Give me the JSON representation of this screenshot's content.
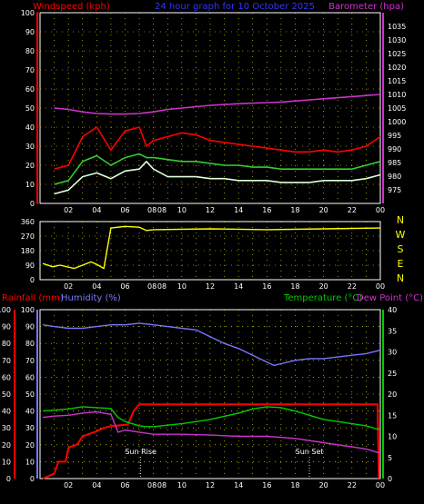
{
  "header": {
    "left_label": "Windspeed (kph)",
    "center_title": "24 hour graph for 10 October 2025",
    "right_label": "Barometer (hpa)"
  },
  "colors": {
    "background": "#000000",
    "panel_border": "#ffffff",
    "grid": "#ffff00",
    "wind_gust": "#ff0000",
    "wind_avg": "#33cc33",
    "wind_speed": "#ddffdd",
    "barometer": "#cc33cc",
    "direction": "#ffff00",
    "rainfall": "#ff0000",
    "humidity": "#7777ff",
    "temperature": "#00cc00",
    "dew_point": "#cc33cc",
    "header_left": "#ff0000",
    "header_center": "#3333ff",
    "header_right": "#cc33cc"
  },
  "x_tick_labels": [
    "02",
    "04",
    "06",
    "08",
    "08",
    "10",
    "12",
    "14",
    "16",
    "18",
    "20",
    "22",
    "00"
  ],
  "chart_data": [
    {
      "type": "line",
      "panel": "wind-barometer",
      "xlabel": "",
      "ylabel_left": "Windspeed (kph)",
      "ylabel_right": "Barometer (hpa)",
      "ylim_left": [
        0,
        100
      ],
      "ylim_right": [
        970,
        1040
      ],
      "yticks_left": [
        0,
        10,
        20,
        30,
        40,
        50,
        60,
        70,
        80,
        90,
        100
      ],
      "yticks_right": [
        975,
        980,
        985,
        990,
        995,
        1000,
        1005,
        1010,
        1015,
        1020,
        1025,
        1030,
        1035
      ],
      "grid": true,
      "series": [
        {
          "name": "Barometer (hpa)",
          "axis": "right",
          "color_key": "barometer",
          "x": [
            1,
            2,
            3,
            4,
            5,
            6,
            7,
            7.5,
            8,
            9,
            10,
            11,
            12,
            13,
            14,
            15,
            16,
            17,
            18,
            19,
            20,
            21,
            22,
            23,
            24
          ],
          "y": [
            1005.0,
            1004.5,
            1003.6,
            1003.0,
            1002.8,
            1002.8,
            1003.0,
            1003.3,
            1003.6,
            1004.5,
            1005.0,
            1005.5,
            1006.0,
            1006.3,
            1006.6,
            1006.8,
            1007.0,
            1007.2,
            1007.6,
            1008.0,
            1008.4,
            1008.8,
            1009.2,
            1009.6,
            1010.0
          ]
        },
        {
          "axis": "left",
          "color_key": "wind_gust",
          "x": [
            1,
            2,
            3,
            4,
            5,
            6,
            7,
            7.5,
            8,
            9,
            10,
            11,
            12,
            13,
            14,
            15,
            16,
            17,
            18,
            19,
            20,
            21,
            22,
            23,
            24
          ],
          "y": [
            18,
            20,
            35,
            40,
            28,
            38,
            40,
            30,
            33,
            35,
            37,
            36,
            33,
            32,
            31,
            30,
            29,
            28,
            27,
            27,
            28,
            27,
            28,
            30,
            35
          ]
        },
        {
          "axis": "left",
          "color_key": "wind_avg",
          "x": [
            1,
            2,
            3,
            4,
            5,
            6,
            7,
            7.5,
            8,
            9,
            10,
            11,
            12,
            13,
            14,
            15,
            16,
            17,
            18,
            19,
            20,
            21,
            22,
            23,
            24
          ],
          "y": [
            10,
            12,
            22,
            25,
            20,
            24,
            26,
            24,
            24,
            23,
            22,
            22,
            21,
            20,
            20,
            19,
            19,
            18,
            18,
            18,
            18,
            18,
            18,
            20,
            22
          ]
        },
        {
          "axis": "left",
          "color_key": "wind_speed",
          "x": [
            1,
            2,
            3,
            4,
            5,
            6,
            7,
            7.5,
            8,
            9,
            10,
            11,
            12,
            13,
            14,
            15,
            16,
            17,
            18,
            19,
            20,
            21,
            22,
            23,
            24
          ],
          "y": [
            5,
            7,
            14,
            16,
            13,
            17,
            18,
            22,
            18,
            14,
            14,
            14,
            13,
            13,
            12,
            12,
            12,
            11,
            11,
            11,
            12,
            12,
            12,
            13,
            15
          ]
        }
      ]
    },
    {
      "type": "line",
      "panel": "wind-direction",
      "xlabel": "",
      "ylabel": "",
      "ylim": [
        0,
        360
      ],
      "yticks": [
        0,
        90,
        180,
        270,
        360
      ],
      "right_labels": [
        "N",
        "W",
        "S",
        "E",
        "N"
      ],
      "grid": true,
      "series": [
        {
          "color_key": "direction",
          "x": [
            0.2,
            0.9,
            1.4,
            2.4,
            3.6,
            4.0,
            4.5,
            5.0,
            6.0,
            7.0,
            7.5,
            8.0,
            12.0,
            16.0,
            20.0,
            24.0
          ],
          "y": [
            100,
            80,
            90,
            70,
            110,
            95,
            70,
            320,
            330,
            325,
            305,
            310,
            315,
            310,
            315,
            320
          ]
        }
      ]
    },
    {
      "type": "line",
      "panel": "rain-humidity-temperature",
      "xlabel": "",
      "ylabel_left_1": "Rainfall (mm)",
      "ylabel_left_2": "Humidity (%)",
      "ylabel_right_1": "Temperature (°C)",
      "ylabel_right_2": "Dew Point (°C)",
      "ylim_left": [
        0,
        100
      ],
      "ylim_right": [
        0,
        40
      ],
      "yticks_left": [
        0,
        10,
        20,
        30,
        40,
        50,
        60,
        70,
        80,
        90,
        100
      ],
      "yticks_right": [
        0,
        5,
        10,
        15,
        20,
        25,
        30,
        35,
        40
      ],
      "grid": true,
      "annotations": [
        {
          "label": "Sun Rise",
          "x": 7.1
        },
        {
          "label": "Sun Set",
          "x": 19.0
        }
      ],
      "series": [
        {
          "name": "Rainfall (mm)",
          "axis": "left",
          "color_key": "rainfall",
          "x": [
            0.2,
            1.0,
            1.3,
            1.8,
            2.0,
            2.2,
            2.6,
            3.0,
            4.0,
            4.5,
            5.0,
            6.2,
            6.6,
            7.0,
            23.8,
            23.9
          ],
          "y": [
            0,
            3,
            10,
            10,
            18,
            19,
            20,
            25,
            28,
            30,
            31,
            32,
            40,
            44,
            44,
            0
          ]
        },
        {
          "name": "Humidity (%)",
          "axis": "left",
          "color_key": "humidity",
          "x": [
            0.2,
            1,
            2,
            3,
            4,
            5,
            6,
            7,
            8,
            9,
            10,
            11,
            12,
            13,
            14,
            15,
            16,
            16.5,
            17,
            18,
            19,
            20,
            21,
            22,
            23,
            24
          ],
          "y": [
            91,
            90,
            89,
            89,
            90,
            91,
            91,
            92,
            91,
            90,
            89,
            88,
            84,
            80,
            77,
            73,
            69,
            67,
            68,
            70,
            71,
            71,
            72,
            73,
            74,
            76
          ]
        },
        {
          "name": "Temperature (°C)",
          "axis": "right",
          "color_key": "temperature",
          "x": [
            0.2,
            1,
            2,
            3,
            4,
            5,
            5.5,
            6,
            6.5,
            7,
            7.5,
            8,
            10,
            12,
            14,
            15,
            16,
            17,
            18,
            19,
            20,
            21,
            22,
            23,
            24
          ],
          "y": [
            16.0,
            16.2,
            16.5,
            17.0,
            16.8,
            16.6,
            14.5,
            13.5,
            13.0,
            12.5,
            12.3,
            12.3,
            13.0,
            14.0,
            15.5,
            16.5,
            17.0,
            16.8,
            16.0,
            15.0,
            14.0,
            13.5,
            13.0,
            12.5,
            11.5
          ]
        },
        {
          "name": "Dew Point (°C)",
          "axis": "right",
          "color_key": "dew_point",
          "x": [
            0.2,
            1,
            2,
            3,
            4,
            5,
            5.5,
            6,
            7,
            8,
            10,
            12,
            14,
            16,
            18,
            20,
            22,
            23,
            24
          ],
          "y": [
            14.5,
            14.8,
            15.0,
            15.5,
            15.8,
            15.2,
            11.0,
            11.5,
            11.0,
            10.5,
            10.5,
            10.3,
            10.0,
            10.0,
            9.5,
            8.5,
            7.5,
            7.0,
            6.0
          ]
        }
      ]
    }
  ],
  "bottom_panel_labels": {
    "rainfall": "Rainfall (mm)",
    "humidity": "Humidity (%)",
    "temperature": "Temperature (°C)",
    "dew_point": "Dew Point (°C)"
  }
}
